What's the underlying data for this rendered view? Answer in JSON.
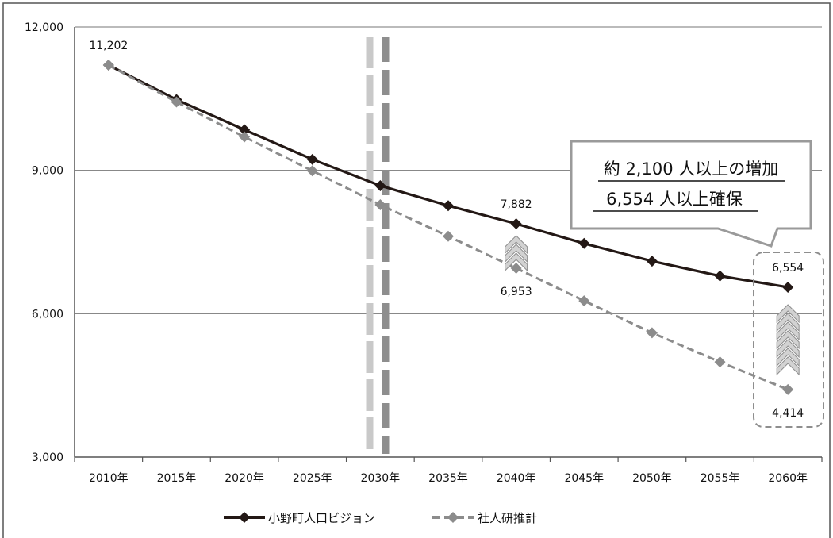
{
  "chart_data": {
    "type": "line",
    "categories": [
      "2010年",
      "2015年",
      "2020年",
      "2025年",
      "2030年",
      "2035年",
      "2040年",
      "2045年",
      "2050年",
      "2055年",
      "2060年"
    ],
    "ylim": [
      3000,
      12000
    ],
    "yticks": [
      "3,000",
      "6,000",
      "9,000",
      "12,000"
    ],
    "grid": true,
    "legend_position": "bottom",
    "series": [
      {
        "name": "小野町人口ビジョン",
        "style": "solid",
        "color": "#231815",
        "values": [
          11202,
          10480,
          9850,
          9230,
          8680,
          8260,
          7882,
          7470,
          7100,
          6790,
          6554
        ]
      },
      {
        "name": "社人研推計",
        "style": "dashed",
        "color": "#8c8c8c",
        "values": [
          11202,
          10430,
          9700,
          8990,
          8280,
          7620,
          6953,
          6270,
          5600,
          4990,
          4414
        ]
      }
    ],
    "data_labels": [
      {
        "series": 0,
        "index": 0,
        "text": "11,202",
        "pos": "above"
      },
      {
        "series": 0,
        "index": 6,
        "text": "7,882",
        "pos": "above"
      },
      {
        "series": 1,
        "index": 6,
        "text": "6,953",
        "pos": "below"
      },
      {
        "series": 0,
        "index": 10,
        "text": "6,554",
        "pos": "above"
      },
      {
        "series": 1,
        "index": 10,
        "text": "4,414",
        "pos": "below"
      }
    ],
    "callout": {
      "line1": "約 2,100 人以上の増加",
      "line2": "6,554 人以上確保"
    }
  }
}
